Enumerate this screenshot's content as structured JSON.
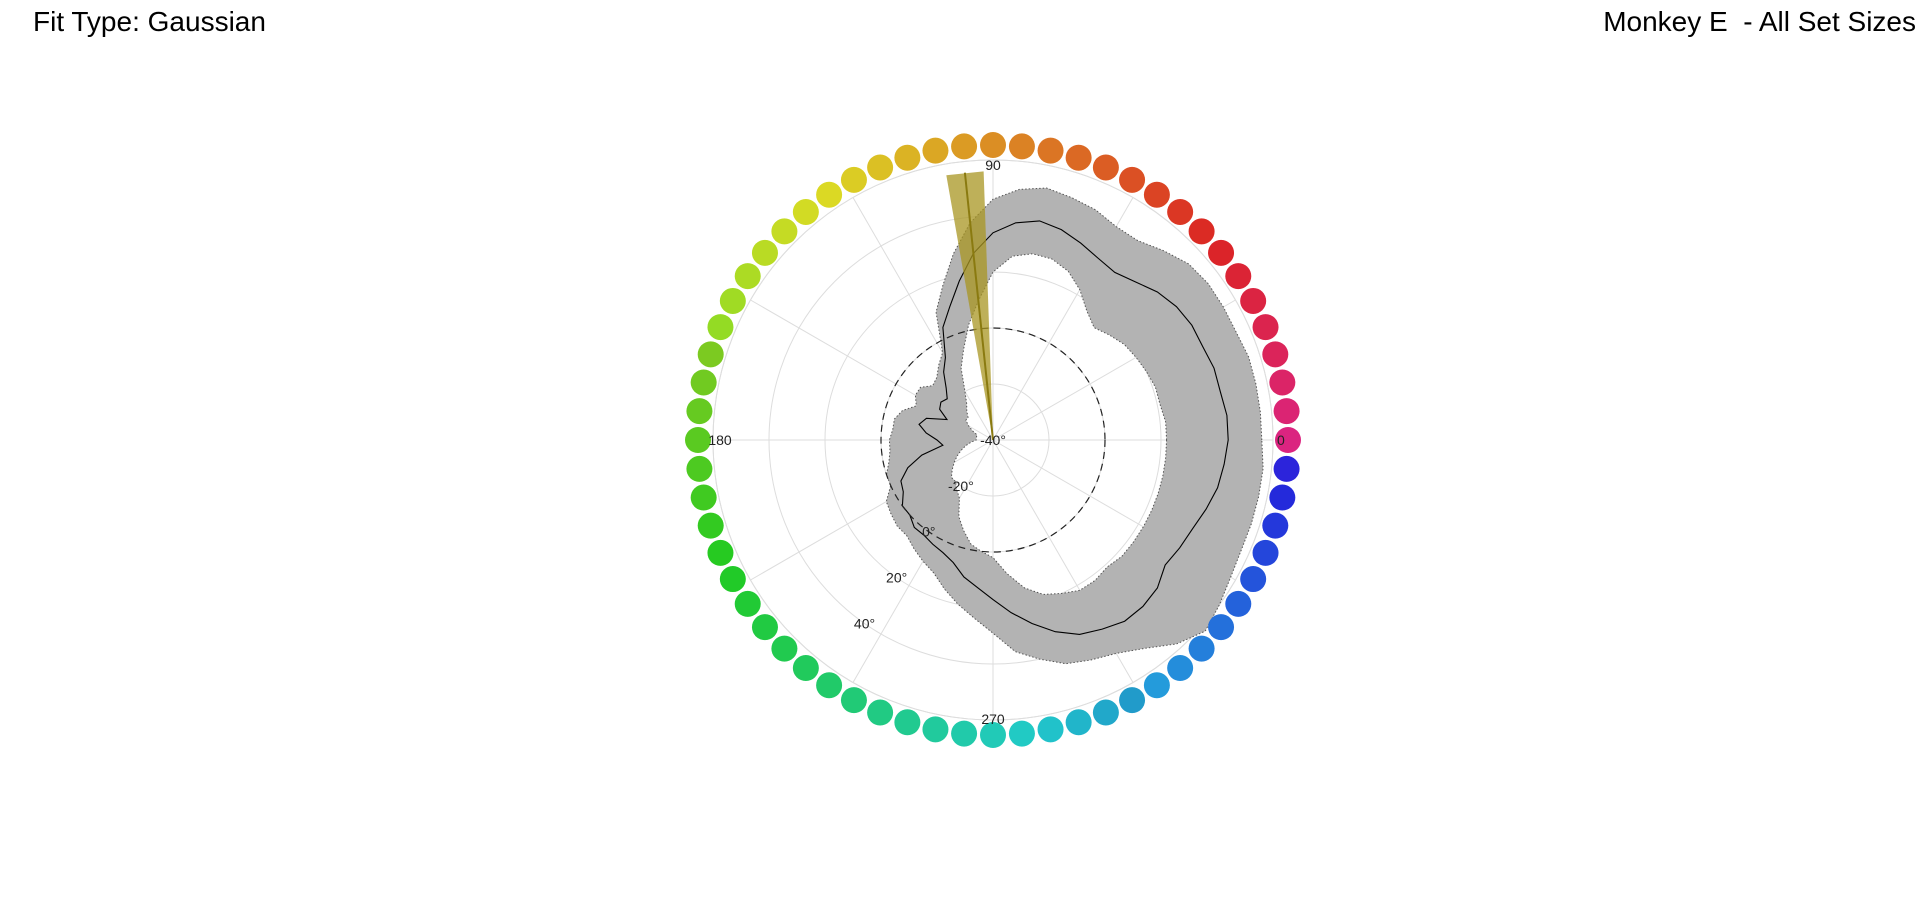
{
  "header": {
    "fit_type": "Fit Type: Gaussian",
    "subject": "Monkey E  - All Set Sizes"
  },
  "chart_data": {
    "type": "polar-area",
    "rlim": [
      -40,
      60
    ],
    "r_reference": 0,
    "radial_ticks": [
      {
        "value": -40,
        "label": "-40°"
      },
      {
        "value": -20,
        "label": "-20°"
      },
      {
        "value": 0,
        "label": "0°"
      },
      {
        "value": 20,
        "label": "20°"
      },
      {
        "value": 40,
        "label": "40°"
      }
    ],
    "angle_ticks": [
      {
        "angle": 0,
        "label": "0"
      },
      {
        "angle": 90,
        "label": "90"
      },
      {
        "angle": 180,
        "label": "180"
      },
      {
        "angle": 270,
        "label": "270"
      }
    ],
    "angle_gridlines": [
      0,
      30,
      60,
      90,
      120,
      150,
      180,
      210,
      240,
      270,
      300,
      330
    ],
    "color_wheel_count": 64,
    "fill_color": "#b3b3b3",
    "line_color": "#000000",
    "target_color": "#a89622",
    "target_wedge": {
      "center": 96,
      "half_width": 4,
      "line_width": 1.4,
      "r_max": 56
    },
    "series": {
      "angles": [
        0,
        6,
        12,
        18,
        24,
        30,
        36,
        42,
        48,
        54,
        60,
        66,
        72,
        78,
        84,
        90,
        96,
        102,
        108,
        114,
        120,
        126,
        132,
        138,
        144,
        150,
        156,
        162,
        168,
        174,
        180,
        186,
        192,
        198,
        204,
        210,
        216,
        222,
        228,
        234,
        240,
        246,
        252,
        258,
        264,
        270,
        276,
        282,
        288,
        294,
        300,
        306,
        312,
        318,
        324,
        330,
        336,
        342,
        348,
        354
      ],
      "mean": [
        44,
        44,
        43,
        43,
        42,
        42,
        41,
        39,
        36,
        34,
        35,
        37,
        39,
        40,
        38,
        34,
        27,
        18,
        10,
        4,
        -6,
        -10,
        -15,
        -18,
        -17,
        -18,
        -22,
        -15,
        -13,
        -16,
        -20,
        -22,
        -14,
        -8,
        -4,
        -3,
        0,
        0,
        2,
        2,
        3,
        4,
        6,
        10,
        13,
        17,
        22,
        27,
        32,
        36,
        38,
        40,
        40,
        39,
        36,
        37,
        38,
        40,
        42,
        43
      ],
      "upper": [
        56,
        56,
        56,
        56,
        55,
        55,
        55,
        54,
        51,
        48,
        48,
        50,
        51,
        52,
        50,
        46,
        38,
        28,
        18,
        10,
        -4,
        -7,
        -10,
        -11,
        -8,
        -8,
        -10,
        -6,
        -4,
        -4,
        -3,
        -3,
        -2,
        0,
        0,
        4,
        5,
        6,
        6,
        8,
        10,
        12,
        16,
        20,
        24,
        29,
        36,
        40,
        44,
        46,
        48,
        52,
        58,
        62,
        60,
        58,
        57,
        57,
        57,
        57
      ],
      "lower": [
        22,
        22,
        21,
        21,
        20,
        19,
        18,
        16,
        14,
        17,
        22,
        26,
        28,
        28,
        26,
        20,
        10,
        2,
        -6,
        -12,
        -20,
        -24,
        -26,
        -28,
        -28,
        -30,
        -32,
        -34,
        -34,
        -34,
        -34,
        -32,
        -30,
        -28,
        -26,
        -24,
        -22,
        -20,
        -20,
        -18,
        -16,
        -10,
        -6,
        -2,
        0,
        2,
        8,
        14,
        18,
        20,
        22,
        22,
        21,
        22,
        22,
        22,
        22,
        22,
        22,
        22
      ]
    }
  }
}
